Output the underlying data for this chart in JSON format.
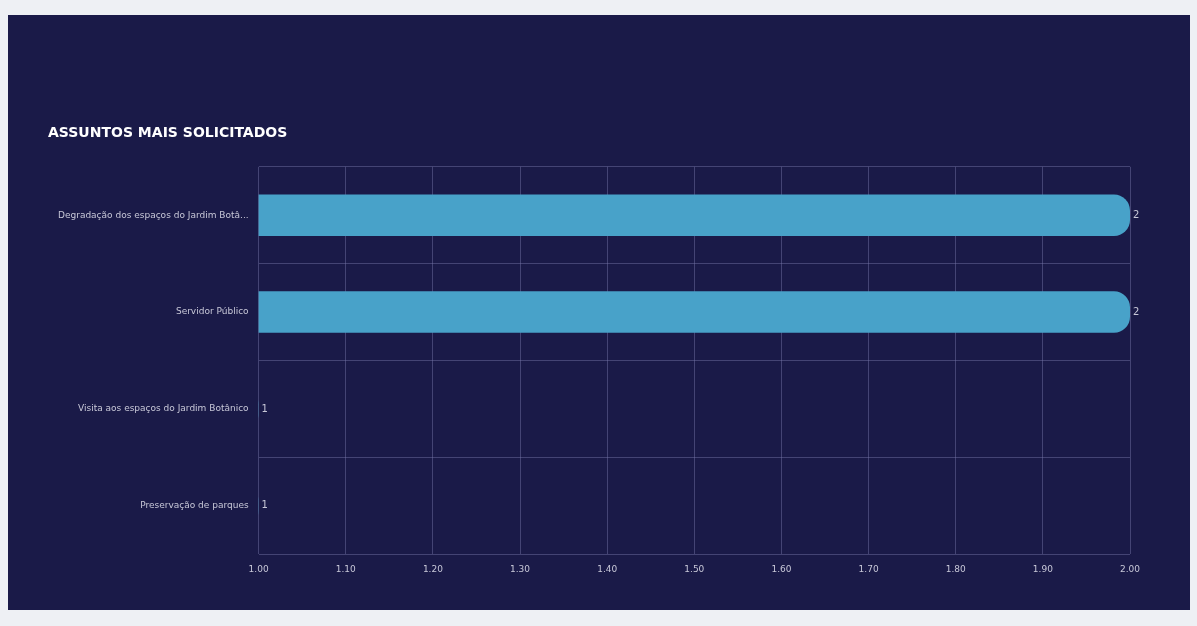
{
  "chart_data": {
    "type": "bar",
    "orientation": "horizontal",
    "title": "ASSUNTOS MAIS SOLICITADOS",
    "categories": [
      "Degradação dos espaços do Jardim Botâ...",
      "Servidor Público",
      "Visita aos espaços do Jardim Botânico",
      "Preservação de parques"
    ],
    "values": [
      2,
      2,
      1,
      1
    ],
    "color": "#48a2c9",
    "xlim": [
      1,
      2
    ],
    "xticks": [
      {
        "value": 1,
        "label": "1.00"
      },
      {
        "value": 1.1,
        "label": "1.10"
      },
      {
        "value": 1.2,
        "label": "1.20"
      },
      {
        "value": 1.3,
        "label": "1.30"
      },
      {
        "value": 1.4,
        "label": "1.40"
      },
      {
        "value": 1.5,
        "label": "1.50"
      },
      {
        "value": 1.6,
        "label": "1.60"
      },
      {
        "value": 1.7,
        "label": "1.70"
      },
      {
        "value": 1.8,
        "label": "1.80"
      },
      {
        "value": 1.9,
        "label": "1.90"
      },
      {
        "value": 2,
        "label": "2.00"
      }
    ],
    "grid": true,
    "data_labels": true,
    "legend": false
  }
}
